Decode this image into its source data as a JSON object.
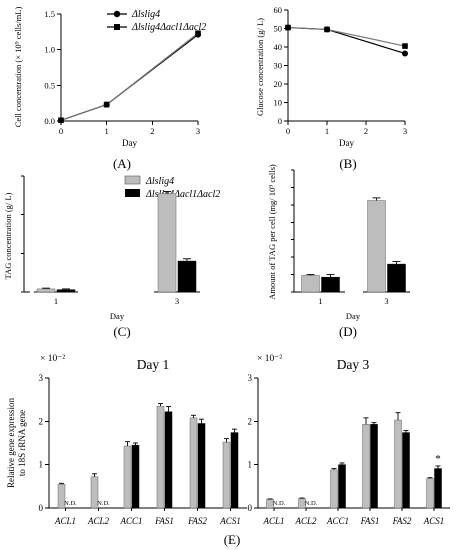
{
  "colors": {
    "grey_bar": "#bdbdbd",
    "black_bar": "#000000"
  },
  "legend_top": {
    "series": [
      "Δlslig4",
      "Δlslig4Δacl1Δacl2"
    ]
  },
  "legend_mid": {
    "series": [
      "Δlslig4",
      "Δlslig4Δacl1Δacl2"
    ]
  },
  "panel_labels": {
    "A": "(A)",
    "B": "(B)",
    "C": "(C)",
    "D": "(D)",
    "E": "(E)"
  },
  "chart_data": [
    {
      "id": "A",
      "type": "line",
      "xlabel": "Day",
      "ylabel": "Cell concentration (× 10⁹ cells/mL)",
      "xlim": [
        0,
        3
      ],
      "ylim": [
        0.0,
        1.5
      ],
      "xticks": [
        "0",
        "1",
        "2",
        "3"
      ],
      "yticks": [
        "0.0",
        "0.5",
        "1.0",
        "1.5"
      ],
      "x": [
        0,
        1,
        3
      ],
      "series": [
        {
          "name": "Δlslig4",
          "marker": "circle",
          "values": [
            0.01,
            0.23,
            1.21
          ]
        },
        {
          "name": "Δlslig4Δacl1Δacl2",
          "marker": "square",
          "values": [
            0.01,
            0.23,
            1.23
          ]
        }
      ]
    },
    {
      "id": "B",
      "type": "line",
      "xlabel": "Day",
      "ylabel": "Glucose concentration (g/ L)",
      "xlim": [
        0,
        3
      ],
      "ylim": [
        0,
        60
      ],
      "xticks": [
        "0",
        "1",
        "2",
        "3"
      ],
      "yticks": [
        "0",
        "10",
        "20",
        "30",
        "40",
        "50",
        "60"
      ],
      "x": [
        0,
        1,
        3
      ],
      "series": [
        {
          "name": "Δlslig4",
          "marker": "circle",
          "values": [
            50.5,
            49.5,
            36.5
          ]
        },
        {
          "name": "Δlslig4Δacl1Δacl2",
          "marker": "square",
          "values": [
            50.5,
            49.5,
            40.5
          ]
        }
      ]
    },
    {
      "id": "C",
      "type": "bar",
      "xlabel": "Day",
      "ylabel": "TAG concentration (g/ L)",
      "ylim": [
        0,
        1.5
      ],
      "categories": [
        "1",
        "3"
      ],
      "series": [
        {
          "name": "Δlslig4",
          "values": [
            0.04,
            1.27
          ],
          "errors": [
            0.01,
            0.03
          ]
        },
        {
          "name": "Δlslig4Δacl1Δacl2",
          "values": [
            0.03,
            0.4
          ],
          "errors": [
            0.01,
            0.03
          ]
        }
      ]
    },
    {
      "id": "D",
      "type": "bar",
      "xlabel": "Day",
      "ylabel": "Amount of TAG per cell (mg/ 10⁹ cells)",
      "ylim": [
        0,
        1.4
      ],
      "categories": [
        "1",
        "3"
      ],
      "series": [
        {
          "name": "Δlslig4",
          "values": [
            0.19,
            1.05
          ],
          "errors": [
            0.01,
            0.03
          ]
        },
        {
          "name": "Δlslig4Δacl1Δacl2",
          "values": [
            0.17,
            0.32
          ],
          "errors": [
            0.03,
            0.03
          ]
        }
      ]
    },
    {
      "id": "E1",
      "type": "bar",
      "title": "Day 1",
      "ylabel": "Relative gene expression to 18S rRNA gene",
      "multiplier": "× 10⁻²",
      "ylim": [
        0,
        3
      ],
      "yticks": [
        "0",
        "1",
        "2",
        "3"
      ],
      "categories": [
        "ACL1",
        "ACL2",
        "ACC1",
        "FAS1",
        "FAS2",
        "ACS1"
      ],
      "nd_label": "N.D.",
      "series": [
        {
          "name": "Δlslig4",
          "values": [
            0.55,
            0.72,
            1.43,
            2.35,
            2.08,
            1.52
          ],
          "errors": [
            0.02,
            0.07,
            0.1,
            0.06,
            0.06,
            0.08
          ]
        },
        {
          "name": "Δlslig4Δacl1Δacl2",
          "values": [
            null,
            null,
            1.45,
            2.22,
            1.95,
            1.74
          ],
          "errors": [
            null,
            null,
            0.05,
            0.12,
            0.1,
            0.08
          ]
        }
      ]
    },
    {
      "id": "E3",
      "type": "bar",
      "title": "Day 3",
      "multiplier": "× 10⁻²",
      "ylim": [
        0,
        3
      ],
      "yticks": [
        "0",
        "1",
        "2",
        "3"
      ],
      "categories": [
        "ACL1",
        "ACL2",
        "ACC1",
        "FAS1",
        "FAS2",
        "ACS1"
      ],
      "nd_label": "N.D.",
      "significance": [
        {
          "category": "ACS1",
          "mark": "*"
        }
      ],
      "series": [
        {
          "name": "Δlslig4",
          "values": [
            0.2,
            0.22,
            0.88,
            1.93,
            2.03,
            0.68
          ],
          "errors": [
            0.01,
            0.01,
            0.03,
            0.15,
            0.17,
            0.02
          ]
        },
        {
          "name": "Δlslig4Δacl1Δacl2",
          "values": [
            null,
            null,
            1.0,
            1.93,
            1.74,
            0.91
          ],
          "errors": [
            null,
            null,
            0.04,
            0.04,
            0.05,
            0.06
          ]
        }
      ]
    }
  ]
}
